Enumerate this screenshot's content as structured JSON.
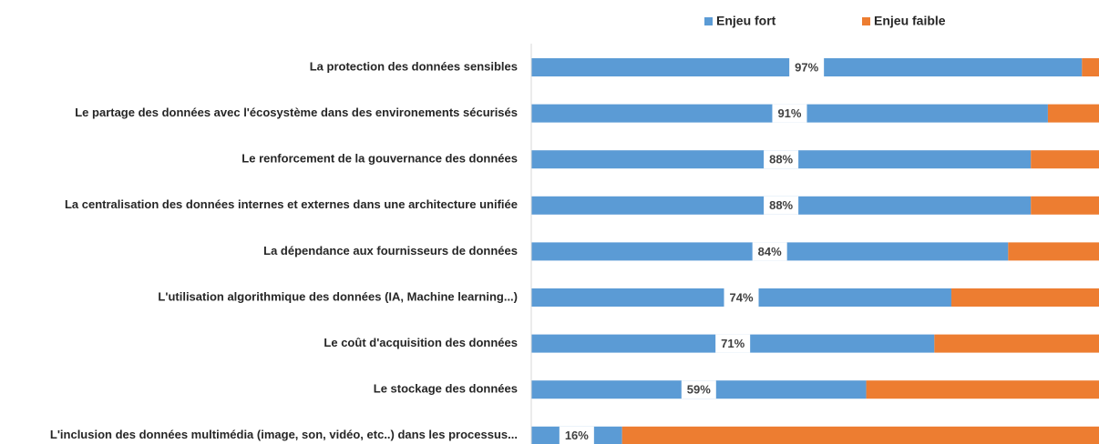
{
  "chart_data": {
    "type": "stacked-barh",
    "categories": [
      "La protection des données sensibles",
      "Le partage des données avec l'écosystème dans des environements sécurisés",
      "Le renforcement de la gouvernance des données",
      "La centralisation des données internes et externes dans une architecture unifiée",
      "La dépendance aux fournisseurs de données",
      "L'utilisation algorithmique des données (IA, Machine learning...)",
      "Le coût d'acquisition des données",
      "Le stockage des données",
      "L'inclusion des données multimédia (image, son, vidéo, etc..) dans les processus..."
    ],
    "series": [
      {
        "name": "Enjeu fort",
        "color": "#5b9bd5",
        "values": [
          97,
          91,
          88,
          88,
          84,
          74,
          71,
          59,
          16
        ],
        "value_labels": [
          "97%",
          "91%",
          "88%",
          "88%",
          "84%",
          "74%",
          "71%",
          "59%",
          "16%"
        ]
      },
      {
        "name": "Enjeu faible",
        "color": "#ed7d31",
        "values": [
          3,
          9,
          12,
          12,
          16,
          26,
          29,
          41,
          84
        ]
      }
    ],
    "xlim": [
      0,
      100
    ],
    "legend": "top"
  }
}
